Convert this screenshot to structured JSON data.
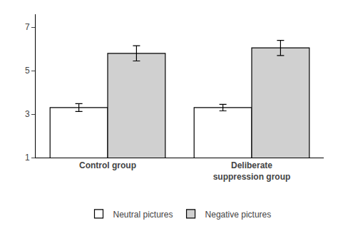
{
  "chart_data": {
    "type": "bar",
    "categories": [
      "Control group",
      "Deliberate\nsuppression group"
    ],
    "series": [
      {
        "name": "Neutral pictures",
        "color": "white",
        "values": [
          3.3,
          3.3
        ],
        "errors": [
          0.18,
          0.15
        ]
      },
      {
        "name": "Negative pictures",
        "color": "#d0d0d0",
        "values": [
          5.8,
          6.05
        ],
        "errors": [
          0.35,
          0.35
        ]
      }
    ],
    "ylim": [
      1,
      7.6
    ],
    "yticks": [
      1,
      3,
      5,
      7
    ],
    "grid": false,
    "legend": "bottom"
  }
}
